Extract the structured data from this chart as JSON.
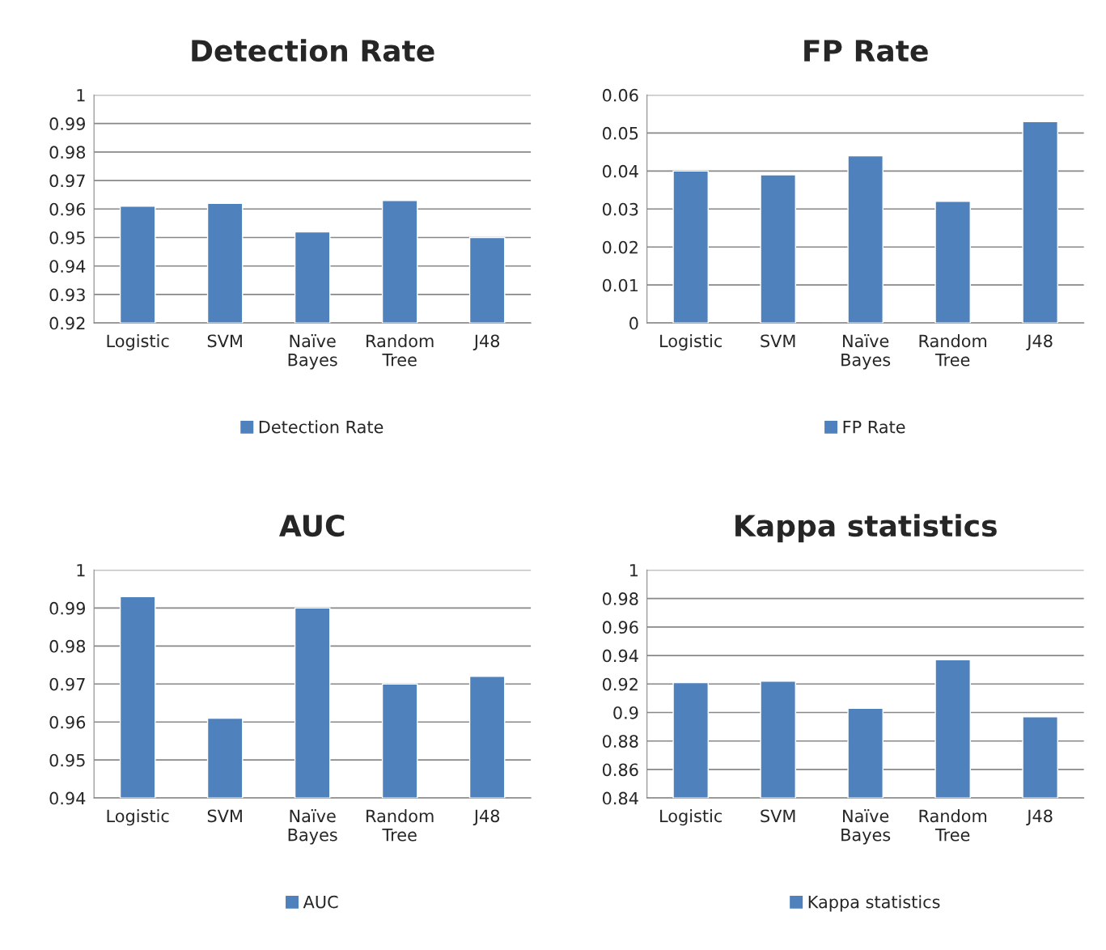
{
  "chart_data": [
    {
      "type": "bar",
      "title": "Detection Rate",
      "categories": [
        "Logistic",
        "SVM",
        "Naïve\nBayes",
        "Random\nTree",
        "J48"
      ],
      "series": [
        {
          "name": "Detection Rate",
          "color": "#4f81bd",
          "values": [
            0.961,
            0.962,
            0.952,
            0.963,
            0.95
          ]
        }
      ],
      "ylim": [
        0.92,
        1
      ],
      "yticks": [
        0.92,
        0.93,
        0.94,
        0.95,
        0.96,
        0.97,
        0.98,
        0.99,
        1
      ],
      "grid": "y",
      "legend": "bottom"
    },
    {
      "type": "bar",
      "title": "FP Rate",
      "categories": [
        "Logistic",
        "SVM",
        "Naïve\nBayes",
        "Random\nTree",
        "J48"
      ],
      "series": [
        {
          "name": "FP Rate",
          "color": "#4f81bd",
          "values": [
            0.04,
            0.039,
            0.044,
            0.032,
            0.053
          ]
        }
      ],
      "ylim": [
        0,
        0.06
      ],
      "yticks": [
        0,
        0.01,
        0.02,
        0.03,
        0.04,
        0.05,
        0.06
      ],
      "grid": "y",
      "legend": "bottom"
    },
    {
      "type": "bar",
      "title": "AUC",
      "categories": [
        "Logistic",
        "SVM",
        "Naïve\nBayes",
        "Random\nTree",
        "J48"
      ],
      "series": [
        {
          "name": "AUC",
          "color": "#4f81bd",
          "values": [
            0.993,
            0.961,
            0.99,
            0.97,
            0.972
          ]
        }
      ],
      "ylim": [
        0.94,
        1
      ],
      "yticks": [
        0.94,
        0.95,
        0.96,
        0.97,
        0.98,
        0.99,
        1
      ],
      "grid": "y",
      "legend": "bottom"
    },
    {
      "type": "bar",
      "title": "Kappa statistics",
      "categories": [
        "Logistic",
        "SVM",
        "Naïve\nBayes",
        "Random\nTree",
        "J48"
      ],
      "series": [
        {
          "name": "Kappa statistics",
          "color": "#4f81bd",
          "values": [
            0.921,
            0.922,
            0.903,
            0.937,
            0.897
          ]
        }
      ],
      "ylim": [
        0.84,
        1
      ],
      "yticks": [
        0.84,
        0.86,
        0.88,
        0.9,
        0.92,
        0.94,
        0.96,
        0.98,
        1
      ],
      "grid": "y",
      "legend": "bottom"
    }
  ]
}
